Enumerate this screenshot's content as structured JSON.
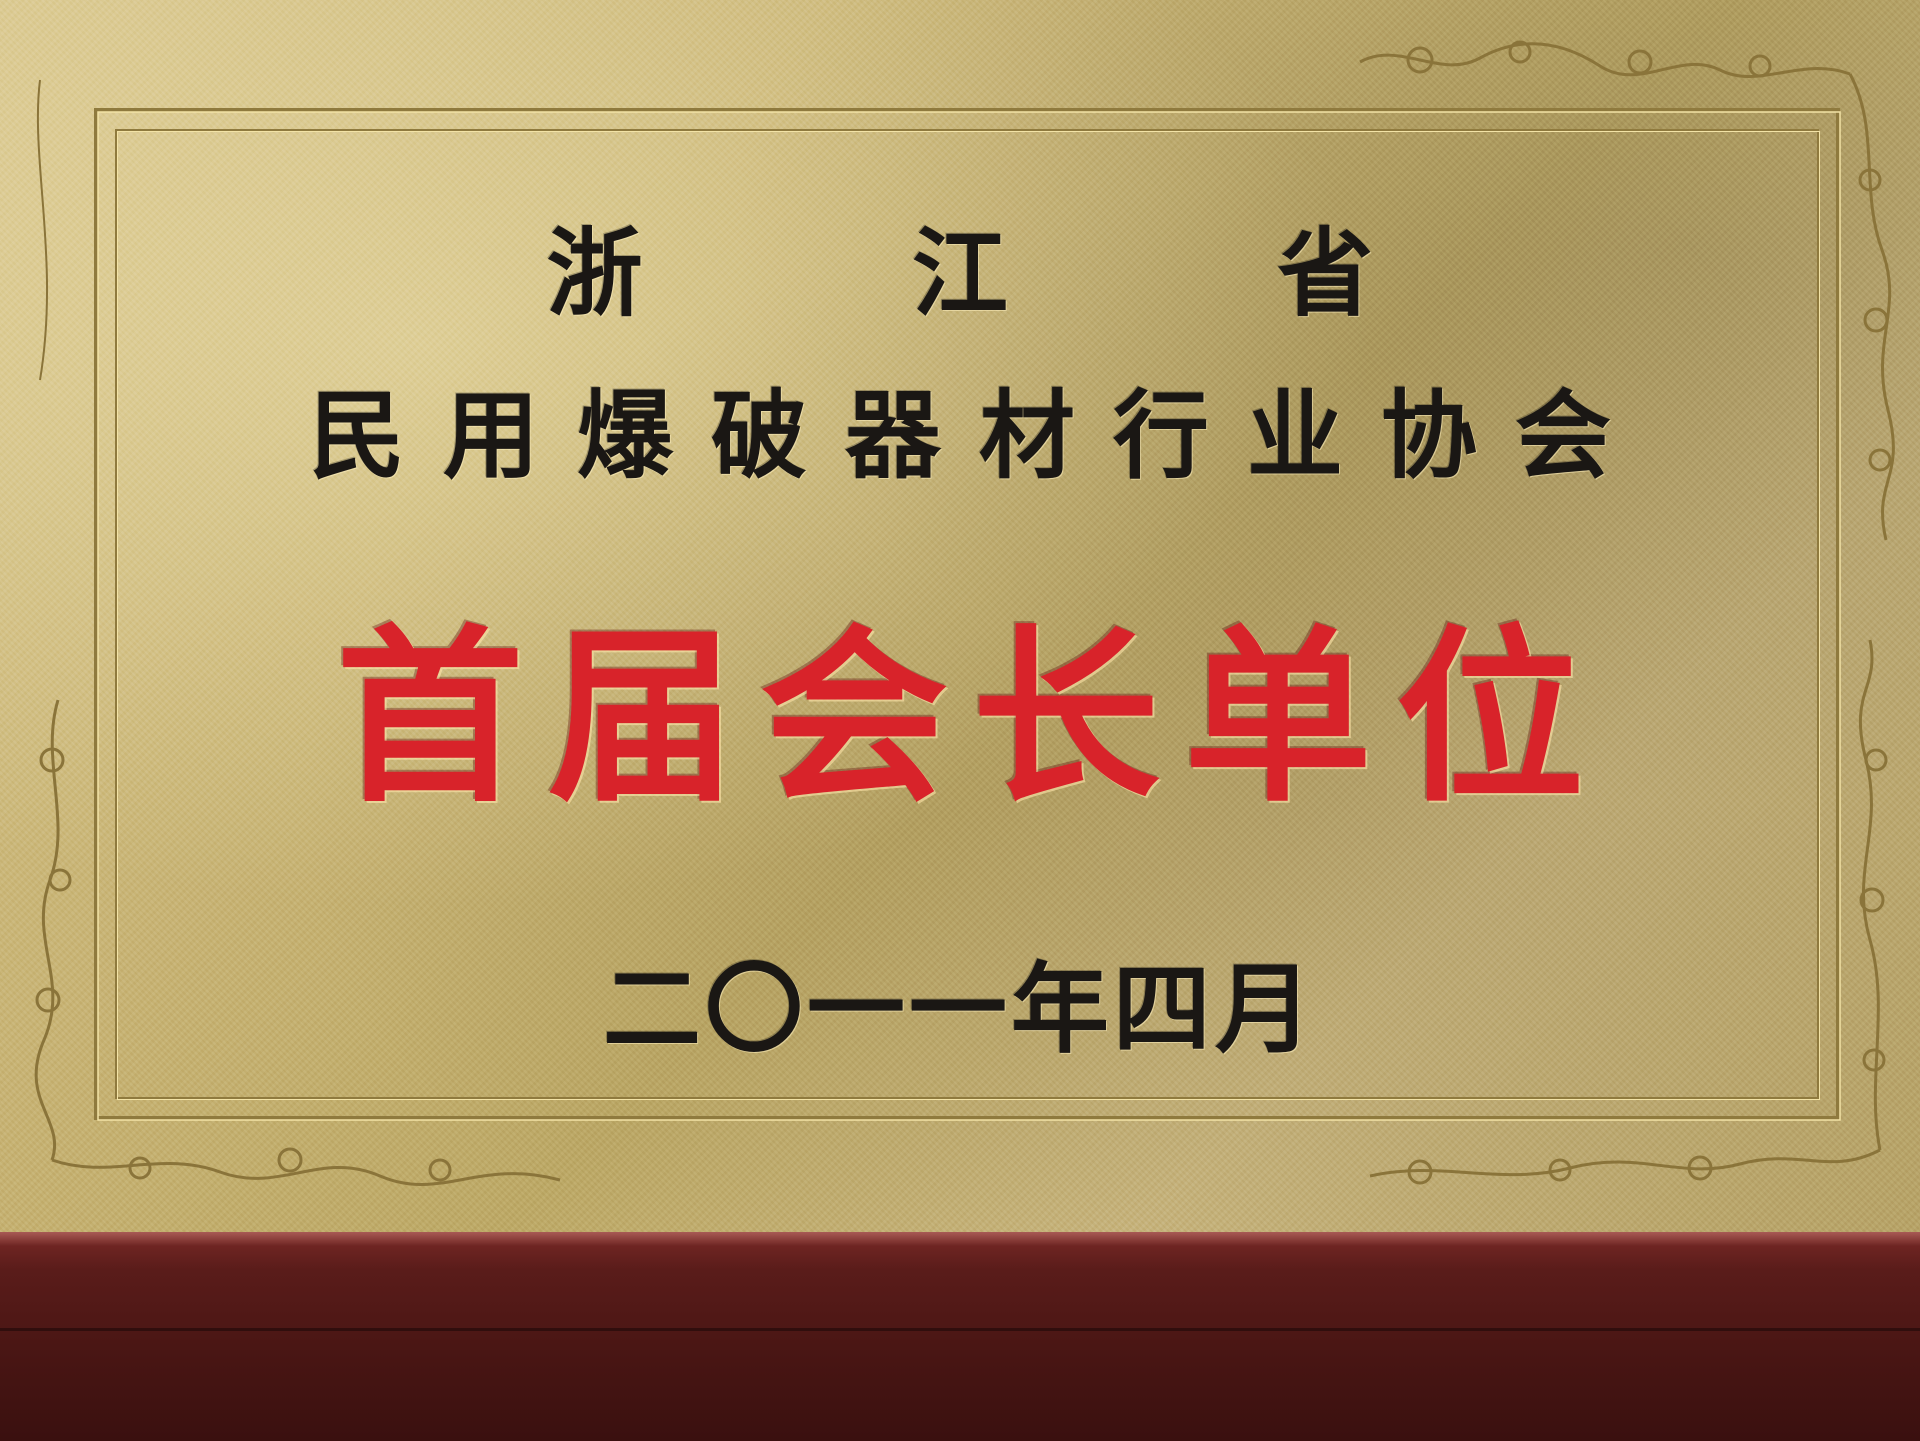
{
  "plaque": {
    "province": "浙  江  省",
    "association": "民用爆破器材行业协会",
    "title": "首届会长单位",
    "date": "二〇一一年四月"
  },
  "colors": {
    "plaque_gold": "#c9b577",
    "text_black": "#1a1714",
    "title_red": "#d8232a",
    "base_wood": "#5a1c1a"
  }
}
